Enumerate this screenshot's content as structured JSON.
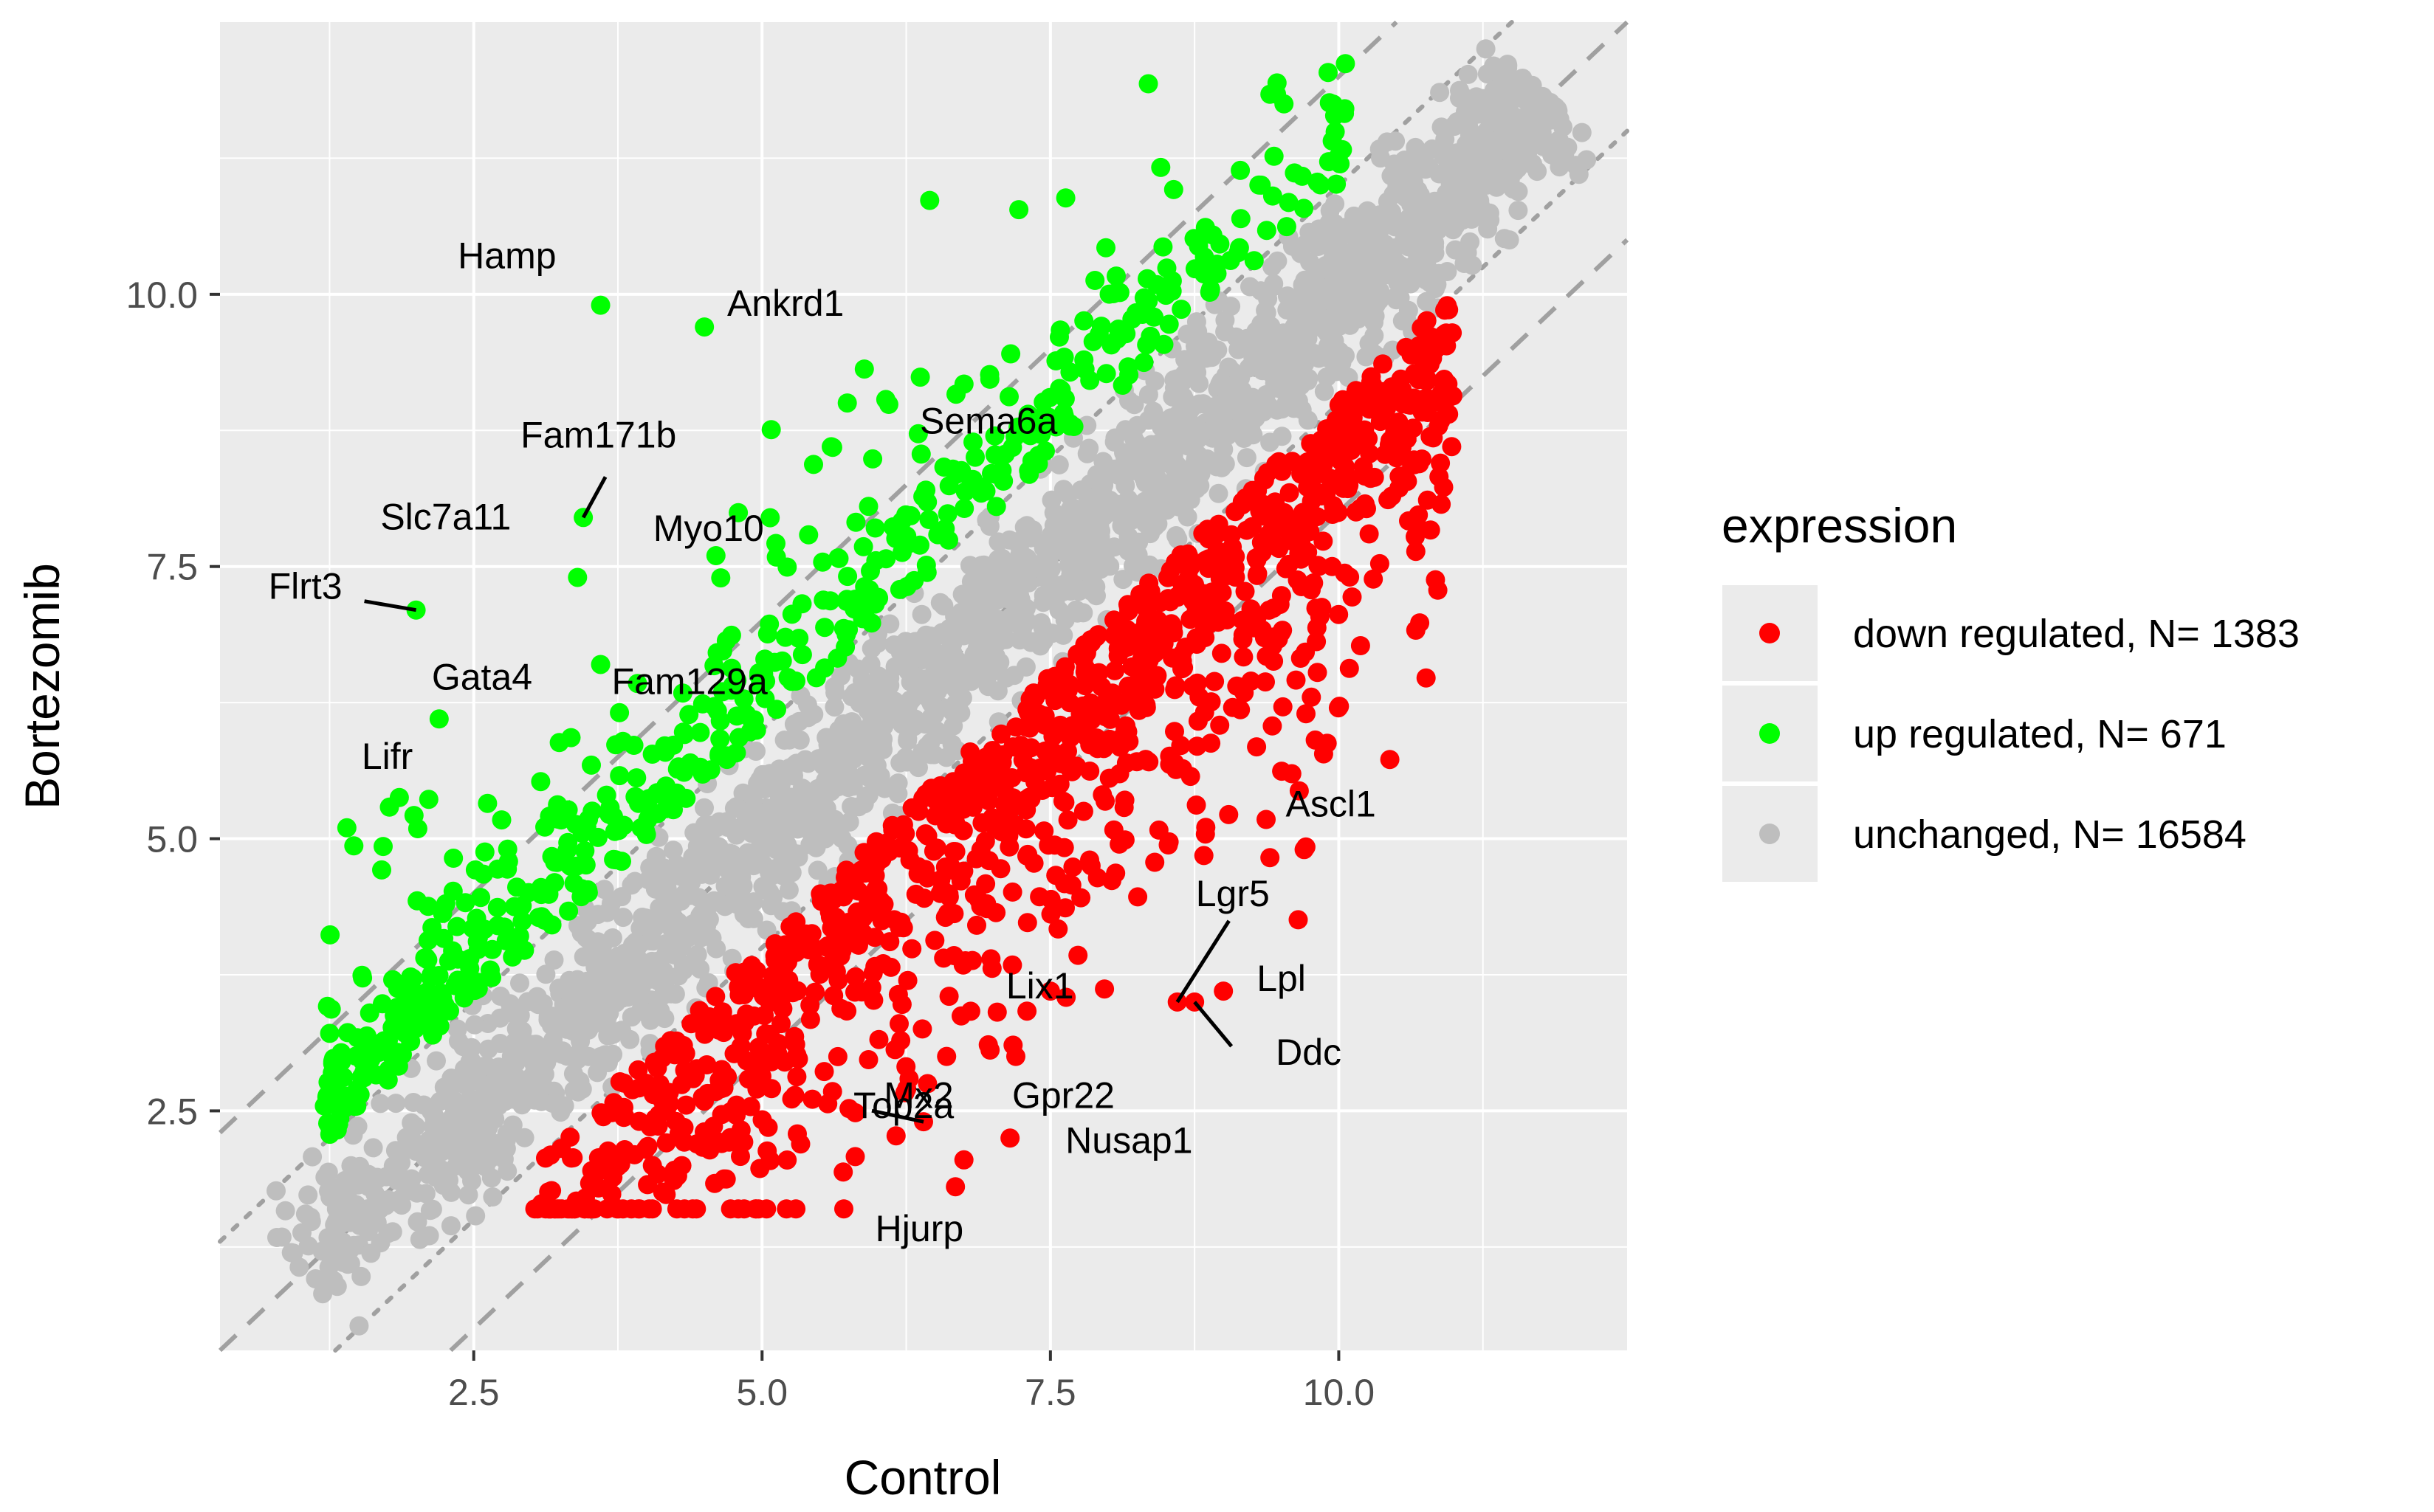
{
  "chart_data": {
    "type": "scatter",
    "xlabel": "Control",
    "ylabel": "Bortezomib",
    "xlim": [
      0.3,
      12.5
    ],
    "ylim": [
      0.3,
      12.5
    ],
    "xticks": [
      "2.5",
      "5.0",
      "7.5",
      "10.0"
    ],
    "yticks": [
      "2.5",
      "5.0",
      "7.5",
      "10.0"
    ],
    "xtick_values": [
      2.5,
      5.0,
      7.5,
      10.0
    ],
    "ytick_values": [
      2.5,
      5.0,
      7.5,
      10.0
    ],
    "grid": true,
    "reference_lines": [
      {
        "style": "dashed",
        "slope": 1,
        "intercept": 0
      },
      {
        "style": "dashed",
        "slope": 1,
        "intercept": 2
      },
      {
        "style": "dashed",
        "slope": 1,
        "intercept": -2
      },
      {
        "style": "dotted",
        "slope": 1,
        "intercept": 1
      },
      {
        "style": "dotted",
        "slope": 1,
        "intercept": -1
      }
    ],
    "legend": {
      "title": "expression",
      "position": "right",
      "entries": [
        {
          "label": "down regulated, N= 1383",
          "color": "#ff0000"
        },
        {
          "label": "up regulated, N= 671",
          "color": "#00ff00"
        },
        {
          "label": "unchanged, N= 16584",
          "color": "#bebebe"
        }
      ]
    },
    "series": [
      {
        "name": "down regulated, N= 1383",
        "color": "#ff0000",
        "count": 1383
      },
      {
        "name": "up regulated, N= 671",
        "color": "#00ff00",
        "count": 671
      },
      {
        "name": "unchanged, N= 16584",
        "color": "#bebebe",
        "count": 16584
      }
    ],
    "labeled_points": [
      {
        "label": "Hamp",
        "x": 3.6,
        "y": 9.9,
        "group": "up"
      },
      {
        "label": "Ankrd1",
        "x": 4.5,
        "y": 9.7,
        "group": "up"
      },
      {
        "label": "Sema6a",
        "x": 5.6,
        "y": 8.6,
        "group": "up"
      },
      {
        "label": "Fam171b",
        "x": 3.45,
        "y": 7.95,
        "group": "up"
      },
      {
        "label": "Slc7a11",
        "x": 3.4,
        "y": 7.4,
        "group": "up"
      },
      {
        "label": "Myo10",
        "x": 4.6,
        "y": 7.6,
        "group": "up"
      },
      {
        "label": "Flrt3",
        "x": 2.0,
        "y": 7.1,
        "group": "up"
      },
      {
        "label": "Fam129a",
        "x": 3.6,
        "y": 6.6,
        "group": "up"
      },
      {
        "label": "Gata4",
        "x": 2.2,
        "y": 6.1,
        "group": "up"
      },
      {
        "label": "Lifr",
        "x": 1.4,
        "y": 5.1,
        "group": "up"
      },
      {
        "label": "Ascl1",
        "x": 9.7,
        "y": 4.9,
        "group": "down"
      },
      {
        "label": "Lgr5",
        "x": 8.6,
        "y": 3.5,
        "group": "down"
      },
      {
        "label": "Lpl",
        "x": 9.0,
        "y": 3.6,
        "group": "down"
      },
      {
        "label": "Ddc",
        "x": 8.75,
        "y": 3.5,
        "group": "down"
      },
      {
        "label": "Lix1",
        "x": 7.5,
        "y": 3.6,
        "group": "down"
      },
      {
        "label": "Mx2",
        "x": 6.6,
        "y": 3.0,
        "group": "down"
      },
      {
        "label": "Gpr22",
        "x": 7.2,
        "y": 3.0,
        "group": "down"
      },
      {
        "label": "Top2a",
        "x": 6.4,
        "y": 2.4,
        "group": "down"
      },
      {
        "label": "Nusap1",
        "x": 7.15,
        "y": 2.25,
        "group": "down"
      },
      {
        "label": "Hjurp",
        "x": 6.75,
        "y": 2.05,
        "group": "down"
      }
    ]
  }
}
